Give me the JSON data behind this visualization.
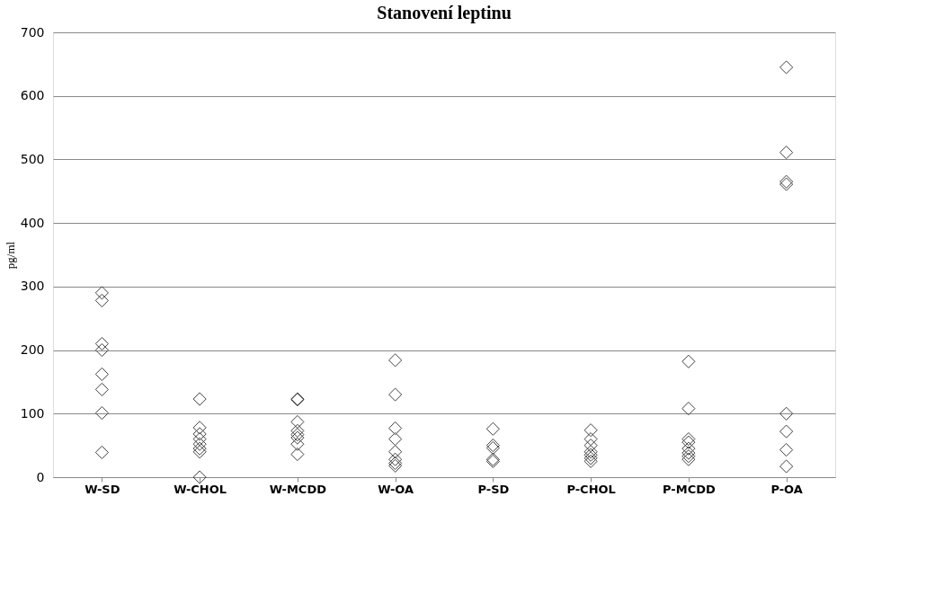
{
  "chart_data": {
    "type": "scatter",
    "title": "Stanovení leptinu",
    "ylabel": "pg/ml",
    "categories": [
      "W-SD",
      "W-CHOL",
      "W-MCDD",
      "W-OA",
      "P-SD",
      "P-CHOL",
      "P-MCDD",
      "P-OA"
    ],
    "series": [
      {
        "color": "#404040",
        "x": [
          "W-SD",
          "W-SD",
          "W-SD",
          "W-SD",
          "W-SD",
          "W-SD",
          "W-SD",
          "W-SD",
          "W-CHOL",
          "W-CHOL",
          "W-CHOL",
          "W-CHOL",
          "W-CHOL",
          "W-CHOL",
          "W-CHOL",
          "W-CHOL",
          "W-MCDD",
          "W-MCDD",
          "W-MCDD",
          "W-MCDD",
          "W-MCDD",
          "W-MCDD",
          "W-MCDD",
          "W-MCDD",
          "W-OA",
          "W-OA",
          "W-OA",
          "W-OA",
          "W-OA",
          "W-OA",
          "W-OA",
          "W-OA",
          "P-SD",
          "P-SD",
          "P-SD",
          "P-SD",
          "P-SD",
          "P-CHOL",
          "P-CHOL",
          "P-CHOL",
          "P-CHOL",
          "P-CHOL",
          "P-CHOL",
          "P-CHOL",
          "P-MCDD",
          "P-MCDD",
          "P-MCDD",
          "P-MCDD",
          "P-MCDD",
          "P-MCDD",
          "P-MCDD",
          "P-MCDD",
          "P-OA",
          "P-OA",
          "P-OA",
          "P-OA",
          "P-OA",
          "P-OA",
          "P-OA",
          "P-OA"
        ],
        "values": [
          290,
          278,
          210,
          200,
          162,
          138,
          101,
          39,
          123,
          78,
          68,
          60,
          52,
          45,
          40,
          0,
          123,
          122,
          87,
          73,
          67,
          62,
          52,
          36,
          184,
          130,
          77,
          60,
          40,
          28,
          22,
          18,
          76,
          50,
          46,
          28,
          25,
          74,
          60,
          50,
          40,
          35,
          30,
          25,
          182,
          108,
          60,
          55,
          45,
          38,
          33,
          28,
          645,
          511,
          465,
          461,
          100,
          72,
          43,
          17
        ]
      }
    ],
    "ylim": [
      0,
      700
    ],
    "yticks": [
      0,
      100,
      200,
      300,
      400,
      500,
      600,
      700
    ],
    "grid": "y",
    "marker": "diamond",
    "legend": false
  }
}
